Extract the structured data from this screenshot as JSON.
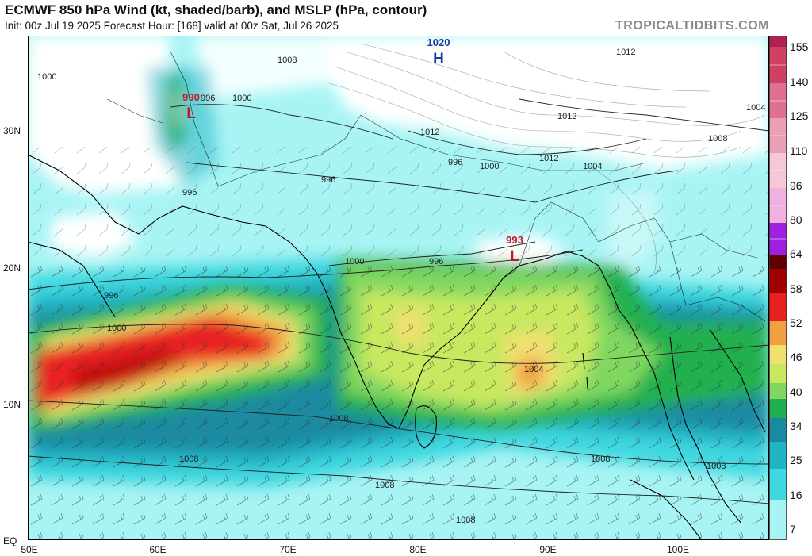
{
  "header": {
    "title": "ECMWF 850 hPa Wind (kt, shaded/barb), and MSLP (hPa, contour)",
    "subtitle": "Init: 00z Jul 19 2025   Forecast Hour: [168]   valid at 00z Sat, Jul 26 2025",
    "brand": "TROPICALTIDBITS.COM"
  },
  "axes": {
    "lat_labels": [
      "30N",
      "20N",
      "10N",
      "EQ"
    ],
    "lon_labels": [
      "50E",
      "60E",
      "70E",
      "80E",
      "90E",
      "100E"
    ]
  },
  "pressure_centers": [
    {
      "type": "H",
      "value": "1020"
    },
    {
      "type": "L",
      "value": "990"
    },
    {
      "type": "L",
      "value": "993"
    }
  ],
  "isobar_labels": [
    "1008",
    "1012",
    "1000",
    "996",
    "1004"
  ],
  "colorbar": {
    "labels": [
      "155",
      "140",
      "125",
      "110",
      "96",
      "80",
      "64",
      "58",
      "52",
      "46",
      "40",
      "34",
      "25",
      "16",
      "7"
    ],
    "colors": {
      "light_cyan": "#a8f4f4",
      "cyan": "#40d8e0",
      "teal": "#20b4c4",
      "dark_teal": "#1a8aa0",
      "green": "#20b050",
      "light_green": "#80d860",
      "yellow_green": "#c8e860",
      "yellow": "#f0e070",
      "orange": "#f0a040",
      "red": "#e82020",
      "dark_red": "#a00000",
      "purple": "#a020e0",
      "pink": "#f0b0e0"
    }
  }
}
